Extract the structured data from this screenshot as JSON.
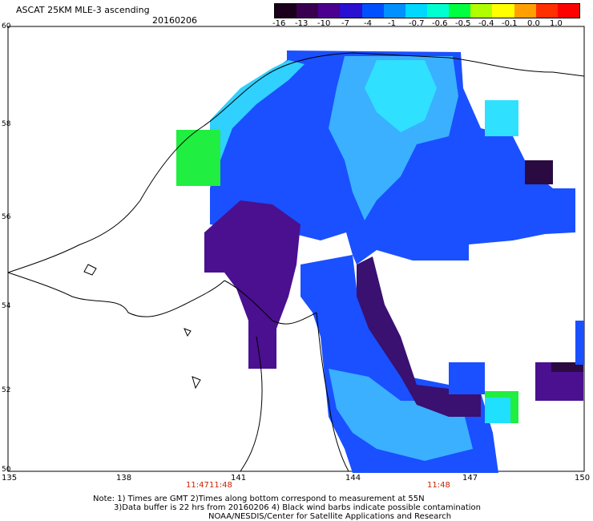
{
  "header": {
    "title": "ASCAT 25KM MLE-3 ascending",
    "date": "20160206"
  },
  "colorbar": {
    "ticks": [
      "-16",
      "-13",
      "-10",
      "-7",
      "-4",
      "-1",
      "-0.7",
      "-0.6",
      "-0.5",
      "-0.4",
      "-0.1",
      "0.0",
      "1.0"
    ],
    "colors": [
      "#1a001a",
      "#3a0050",
      "#4b0090",
      "#2a10d0",
      "#0050ff",
      "#0090ff",
      "#00d8ff",
      "#00ffd0",
      "#00ff40",
      "#b0ff00",
      "#ffff00",
      "#ffa000",
      "#ff3000",
      "#ff0000"
    ]
  },
  "axes": {
    "lat_labels": [
      "60",
      "58",
      "56",
      "54",
      "52",
      "50"
    ],
    "lon_labels": [
      "135",
      "138",
      "141",
      "144",
      "147",
      "150"
    ]
  },
  "times": {
    "t1": "11:47",
    "t2": "11:48",
    "t3": "11:48"
  },
  "notes": {
    "line1": "Note: 1) Times are GMT 2)Times along bottom correspond to measurement at 55N",
    "line2": "3)Data buffer is 22 hrs from 20160206 4) Black wind barbs indicate possible contamination",
    "line3": "NOAA/NESDIS/Center for Satellite Applications and Research"
  },
  "legend_colors": {
    "purple": "#4a1080",
    "dark_purple": "#2a0a40",
    "blue": "#1a50ff",
    "light_blue": "#3aa0ff",
    "cyan": "#20e0ff",
    "green": "#20ff50"
  }
}
